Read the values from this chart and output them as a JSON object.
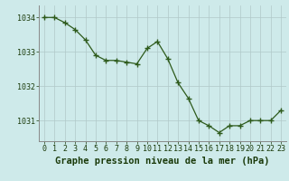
{
  "x": [
    0,
    1,
    2,
    3,
    4,
    5,
    6,
    7,
    8,
    9,
    10,
    11,
    12,
    13,
    14,
    15,
    16,
    17,
    18,
    19,
    20,
    21,
    22,
    23
  ],
  "y": [
    1034.0,
    1034.0,
    1033.85,
    1033.65,
    1033.35,
    1032.9,
    1032.75,
    1032.75,
    1032.7,
    1032.65,
    1033.1,
    1033.3,
    1032.8,
    1032.1,
    1031.65,
    1031.0,
    1030.85,
    1030.65,
    1030.85,
    1030.85,
    1031.0,
    1031.0,
    1031.0,
    1031.3
  ],
  "xlabel": "Graphe pression niveau de la mer (hPa)",
  "ylim": [
    1030.4,
    1034.35
  ],
  "xlim": [
    -0.5,
    23.5
  ],
  "yticks": [
    1031,
    1032,
    1033,
    1034
  ],
  "xticks": [
    0,
    1,
    2,
    3,
    4,
    5,
    6,
    7,
    8,
    9,
    10,
    11,
    12,
    13,
    14,
    15,
    16,
    17,
    18,
    19,
    20,
    21,
    22,
    23
  ],
  "line_color": "#2d5a1b",
  "marker_color": "#2d5a1b",
  "bg_color": "#ceeaea",
  "grid_color": "#b0c8c8",
  "label_color": "#1a3a0a",
  "xlabel_fontsize": 7.5,
  "tick_fontsize": 6.0
}
